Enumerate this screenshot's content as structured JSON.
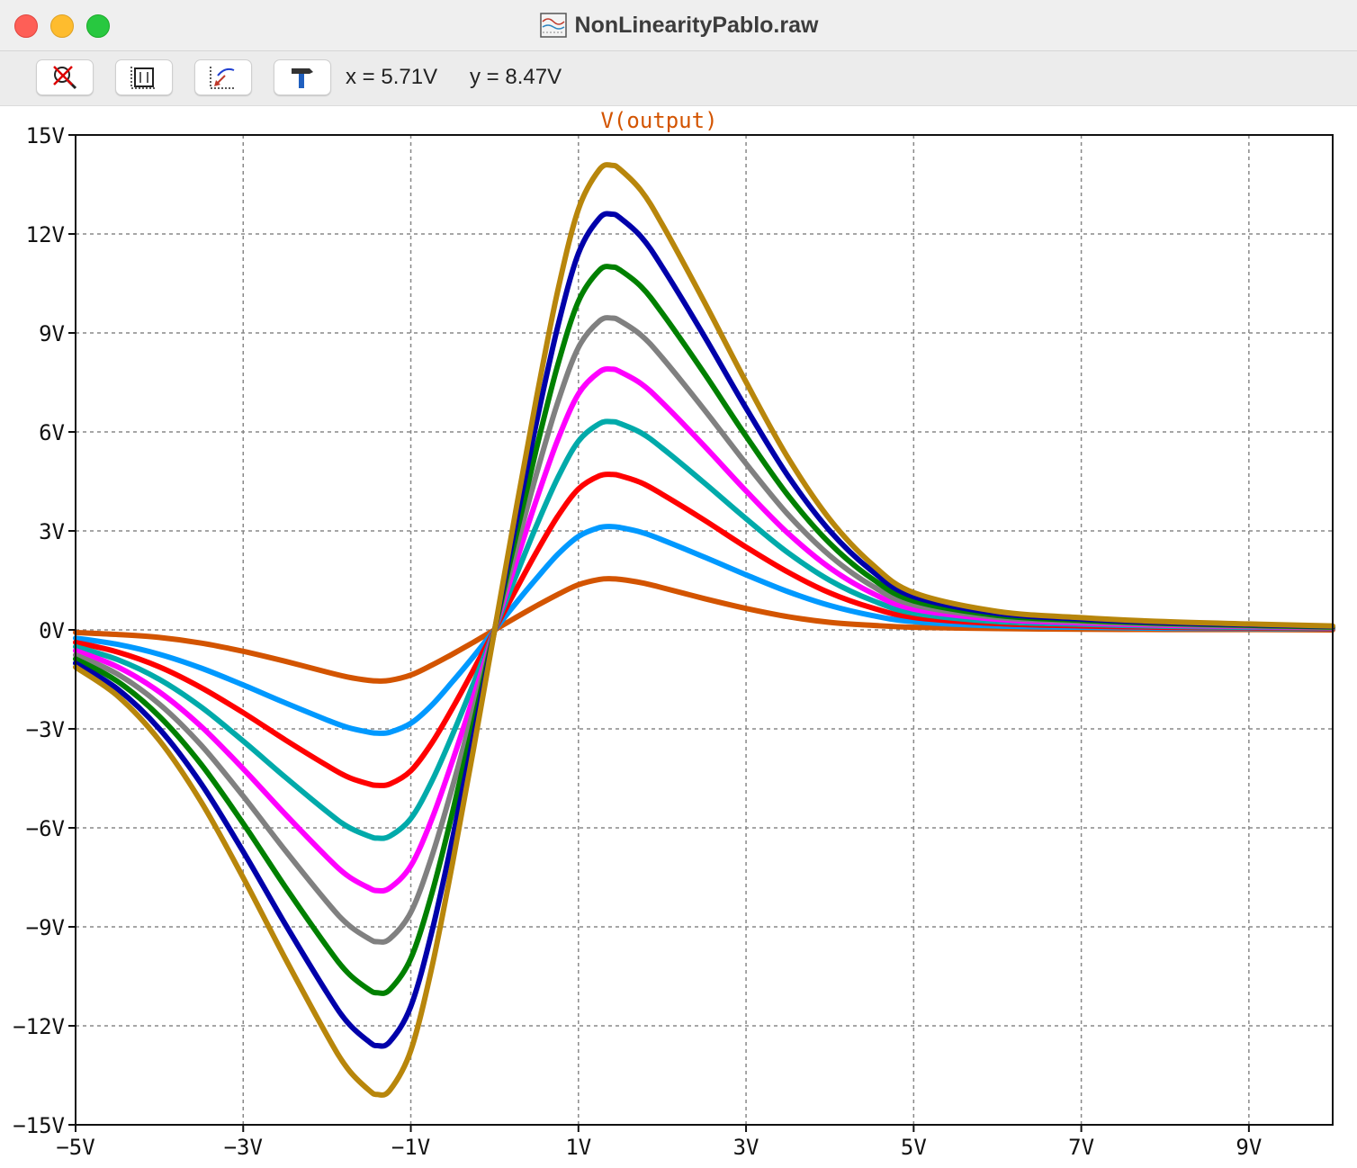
{
  "window": {
    "title": "NonLinearityPablo.raw",
    "title_icon": "waveform-file-icon"
  },
  "toolbar": {
    "buttons": [
      {
        "name": "zoom-cancel-button",
        "icon": "zoom-cancel-icon"
      },
      {
        "name": "zoom-full-extents-button",
        "icon": "zoom-extents-icon"
      },
      {
        "name": "zoom-to-fit-button",
        "icon": "zoom-fit-icon"
      },
      {
        "name": "tools-button",
        "icon": "hammer-icon"
      }
    ],
    "cursor_x": "x = 5.71V",
    "cursor_y": "y = 8.47V"
  },
  "chart_data": {
    "type": "line",
    "title": "V(output)",
    "title_color": "#d35400",
    "xlim": [
      -5,
      10
    ],
    "ylim": [
      -15,
      15
    ],
    "x_ticks": [
      -5,
      -3,
      -1,
      1,
      3,
      5,
      7,
      9
    ],
    "x_tick_labels": [
      "−5V",
      "−3V",
      "−1V",
      "1V",
      "3V",
      "5V",
      "7V",
      "9V"
    ],
    "y_ticks": [
      15,
      12,
      9,
      6,
      3,
      0,
      -3,
      -6,
      -9,
      -12,
      -15
    ],
    "y_tick_labels": [
      "15V",
      "12V",
      "9V",
      "6V",
      "3V",
      "0V",
      "−3V",
      "−6V",
      "−9V",
      "−12V",
      "−15V"
    ],
    "grid": true,
    "x": [
      -5,
      -4.5,
      -4,
      -3.5,
      -3,
      -2.5,
      -2,
      -1.75,
      -1.5,
      -1.4,
      -1.25,
      -1,
      -0.75,
      -0.5,
      -0.25,
      0,
      0.25,
      0.5,
      0.75,
      1,
      1.25,
      1.4,
      1.5,
      1.75,
      2,
      2.5,
      3,
      3.5,
      4,
      4.5,
      5,
      6,
      7,
      8,
      9,
      10
    ],
    "series": [
      {
        "color": "#b8860b",
        "values": [
          -1.13,
          -2.0,
          -3.35,
          -5.22,
          -7.51,
          -9.95,
          -12.29,
          -13.31,
          -13.95,
          -14.08,
          -13.95,
          -12.75,
          -10.24,
          -7.04,
          -3.58,
          0,
          3.58,
          7.04,
          10.24,
          12.75,
          13.95,
          14.08,
          13.95,
          13.31,
          12.29,
          9.95,
          7.51,
          5.22,
          3.35,
          2.0,
          1.13,
          0.56,
          0.37,
          0.25,
          0.18,
          0.12
        ]
      },
      {
        "color": "#0000aa",
        "values": [
          -1.01,
          -1.79,
          -3.0,
          -4.67,
          -6.72,
          -8.91,
          -11.0,
          -11.91,
          -12.48,
          -12.6,
          -12.48,
          -11.41,
          -9.16,
          -6.3,
          -3.2,
          0,
          3.2,
          6.3,
          9.16,
          11.41,
          12.48,
          12.6,
          12.48,
          11.91,
          11.0,
          8.91,
          6.72,
          4.67,
          3.0,
          1.79,
          1.01,
          0.5,
          0.33,
          0.22,
          0.16,
          0.11
        ]
      },
      {
        "color": "#008000",
        "values": [
          -0.88,
          -1.56,
          -2.62,
          -4.08,
          -5.87,
          -7.78,
          -9.6,
          -10.4,
          -10.9,
          -11.0,
          -10.9,
          -9.96,
          -8.0,
          -5.5,
          -2.8,
          0,
          2.8,
          5.5,
          8.0,
          9.96,
          10.9,
          11.0,
          10.9,
          10.4,
          9.6,
          7.78,
          5.87,
          4.08,
          2.62,
          1.56,
          0.88,
          0.44,
          0.29,
          0.2,
          0.14,
          0.09
        ]
      },
      {
        "color": "#808080",
        "values": [
          -0.76,
          -1.34,
          -2.25,
          -3.5,
          -5.04,
          -6.68,
          -8.25,
          -8.93,
          -9.36,
          -9.45,
          -9.36,
          -8.56,
          -6.87,
          -4.73,
          -2.4,
          0,
          2.4,
          4.73,
          6.87,
          8.56,
          9.36,
          9.45,
          9.36,
          8.93,
          8.25,
          6.68,
          5.04,
          3.5,
          2.25,
          1.34,
          0.76,
          0.38,
          0.25,
          0.17,
          0.12,
          0.08
        ]
      },
      {
        "color": "#ff00ff",
        "values": [
          -0.63,
          -1.12,
          -1.88,
          -2.93,
          -4.21,
          -5.58,
          -6.89,
          -7.46,
          -7.82,
          -7.9,
          -7.82,
          -7.15,
          -5.74,
          -3.95,
          -2.01,
          0,
          2.01,
          3.95,
          5.74,
          7.15,
          7.82,
          7.9,
          7.82,
          7.46,
          6.89,
          5.58,
          4.21,
          2.93,
          1.88,
          1.12,
          0.63,
          0.32,
          0.21,
          0.14,
          0.1,
          0.07
        ]
      },
      {
        "color": "#00aaaa",
        "values": [
          -0.51,
          -0.9,
          -1.5,
          -2.34,
          -3.37,
          -4.46,
          -5.51,
          -5.97,
          -6.25,
          -6.31,
          -6.25,
          -5.72,
          -4.59,
          -3.16,
          -1.61,
          0,
          1.61,
          3.16,
          4.59,
          5.72,
          6.25,
          6.31,
          6.25,
          5.97,
          5.51,
          4.46,
          3.37,
          2.34,
          1.5,
          0.9,
          0.51,
          0.25,
          0.17,
          0.11,
          0.08,
          0.06
        ]
      },
      {
        "color": "#ff0000",
        "values": [
          -0.38,
          -0.67,
          -1.12,
          -1.75,
          -2.51,
          -3.33,
          -4.11,
          -4.46,
          -4.67,
          -4.71,
          -4.67,
          -4.27,
          -3.43,
          -2.36,
          -1.2,
          0,
          1.2,
          2.36,
          3.43,
          4.27,
          4.67,
          4.71,
          4.67,
          4.46,
          4.11,
          3.33,
          2.51,
          1.75,
          1.12,
          0.67,
          0.38,
          0.19,
          0.12,
          0.08,
          0.06,
          0.04
        ]
      },
      {
        "color": "#0099ff",
        "values": [
          -0.25,
          -0.44,
          -0.74,
          -1.16,
          -1.67,
          -2.21,
          -2.73,
          -2.96,
          -3.1,
          -3.13,
          -3.1,
          -2.83,
          -2.28,
          -1.56,
          -0.8,
          0,
          0.8,
          1.56,
          2.28,
          2.83,
          3.1,
          3.13,
          3.1,
          2.96,
          2.73,
          2.21,
          1.67,
          1.16,
          0.74,
          0.44,
          0.25,
          0.12,
          0.08,
          0.05,
          0.04,
          0.03
        ]
      },
      {
        "color": "#d35400",
        "values": [
          -0.08,
          -0.14,
          -0.23,
          -0.4,
          -0.65,
          -0.95,
          -1.28,
          -1.43,
          -1.53,
          -1.55,
          -1.53,
          -1.37,
          -1.07,
          -0.73,
          -0.37,
          0,
          0.37,
          0.73,
          1.07,
          1.37,
          1.53,
          1.55,
          1.53,
          1.43,
          1.28,
          0.95,
          0.65,
          0.4,
          0.23,
          0.14,
          0.08,
          0.04,
          0.02,
          0.01,
          0.01,
          0.0
        ]
      }
    ]
  }
}
